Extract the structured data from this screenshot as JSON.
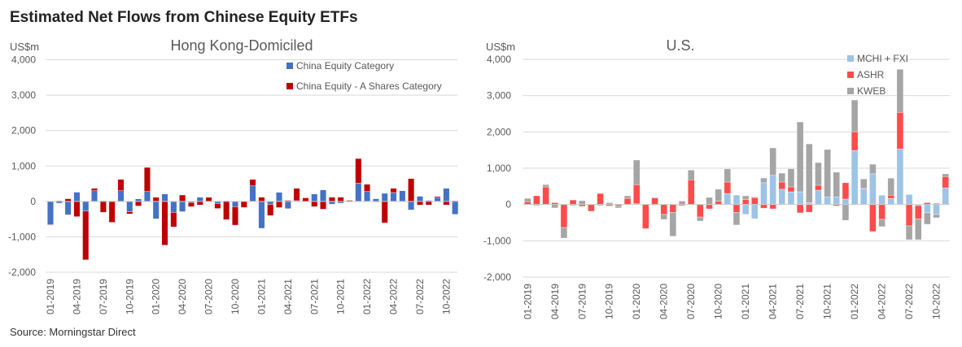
{
  "title": "Estimated Net Flows from Chinese Equity ETFs",
  "source": "Source: Morningstar Direct",
  "chart_data": [
    {
      "type": "bar",
      "stacked": true,
      "title": "Hong Kong-Domiciled",
      "ylabel": "US$m",
      "ylim": [
        -2000,
        4000
      ],
      "yticks": [
        4000,
        3000,
        2000,
        1000,
        0,
        -1000,
        -2000
      ],
      "ytick_labels": [
        "4,000",
        "3,000",
        "2,000",
        "1,000",
        "0",
        "-1,000",
        "-2,000"
      ],
      "grid": true,
      "legend_position": "top-right",
      "x_tick_labels": [
        "01-2019",
        "04-2019",
        "07-2019",
        "10-2019",
        "01-2020",
        "04-2020",
        "07-2020",
        "10-2020",
        "01-2021",
        "04-2021",
        "07-2021",
        "10-2021",
        "01-2022",
        "04-2022",
        "07-2022",
        "10-2022"
      ],
      "months": 47,
      "series": [
        {
          "name": "China Equity Category",
          "color": "#4472C4",
          "values": [
            -660,
            -50,
            -380,
            260,
            -270,
            300,
            20,
            0,
            300,
            -290,
            70,
            280,
            -490,
            210,
            -310,
            -290,
            -30,
            115,
            5,
            -60,
            20,
            -150,
            0,
            440,
            -760,
            -85,
            257,
            -205,
            20,
            0,
            210,
            325,
            -80,
            -50,
            0,
            515,
            280,
            75,
            227,
            250,
            300,
            -242,
            145,
            30,
            110,
            370,
            -365
          ]
        },
        {
          "name": "China Equity - A Shares Category",
          "color": "#C00000",
          "values": [
            -10,
            20,
            75,
            -430,
            -1380,
            70,
            -310,
            -590,
            320,
            -65,
            -130,
            680,
            115,
            -1235,
            -410,
            180,
            -120,
            -100,
            110,
            -140,
            -515,
            -520,
            -170,
            180,
            120,
            -315,
            -175,
            30,
            350,
            100,
            -150,
            -220,
            120,
            120,
            30,
            695,
            205,
            -20,
            -605,
            120,
            0,
            645,
            -100,
            -100,
            30,
            -100,
            20
          ]
        }
      ]
    },
    {
      "type": "bar",
      "stacked": true,
      "title": "U.S.",
      "ylabel": "US$m",
      "ylim": [
        -2000,
        4000
      ],
      "yticks": [
        4000,
        3000,
        2000,
        1000,
        0,
        -1000,
        -2000
      ],
      "ytick_labels": [
        "4,000",
        "3,000",
        "2,000",
        "1,000",
        "0",
        "-1,000",
        "-2,000"
      ],
      "grid": true,
      "legend_position": "top-right",
      "x_tick_labels": [
        "01-2019",
        "04-2019",
        "07-2019",
        "10-2019",
        "01-2020",
        "04-2020",
        "07-2020",
        "10-2020",
        "01-2021",
        "04-2021",
        "07-2021",
        "10-2021",
        "01-2022",
        "04-2022",
        "07-2022",
        "10-2022"
      ],
      "months": 47,
      "series": [
        {
          "name": "MCHI + FXI",
          "color": "#9DC3E6",
          "values": [
            0,
            0,
            0,
            0,
            0,
            0,
            0,
            0,
            0,
            0,
            0,
            0,
            20,
            0,
            -20,
            0,
            0,
            0,
            0,
            0,
            0,
            0,
            305,
            260,
            -270,
            -390,
            600,
            805,
            420,
            350,
            350,
            50,
            395,
            210,
            210,
            150,
            1490,
            435,
            845,
            255,
            170,
            1530,
            275,
            -30,
            -230,
            -275,
            460
          ]
        },
        {
          "name": "ASHR",
          "color": "#FF4B4B",
          "values": [
            75,
            240,
            485,
            50,
            -635,
            125,
            -50,
            -185,
            305,
            -40,
            -40,
            170,
            525,
            -665,
            180,
            -275,
            -215,
            -30,
            680,
            -345,
            -120,
            90,
            315,
            -215,
            140,
            190,
            -100,
            -120,
            200,
            135,
            -230,
            -210,
            135,
            0,
            -40,
            450,
            515,
            20,
            -745,
            -410,
            85,
            1010,
            -590,
            -365,
            50,
            30,
            310
          ]
        },
        {
          "name": "KWEB",
          "color": "#A5A5A5",
          "values": [
            95,
            -30,
            65,
            -95,
            -290,
            -30,
            105,
            0,
            -30,
            50,
            -55,
            70,
            680,
            0,
            20,
            -135,
            -660,
            95,
            270,
            -110,
            195,
            330,
            360,
            -350,
            100,
            20,
            130,
            755,
            245,
            500,
            1925,
            1620,
            625,
            1305,
            680,
            -435,
            875,
            250,
            265,
            -200,
            470,
            1185,
            -380,
            -575,
            -315,
            -90,
            75
          ]
        }
      ]
    }
  ]
}
